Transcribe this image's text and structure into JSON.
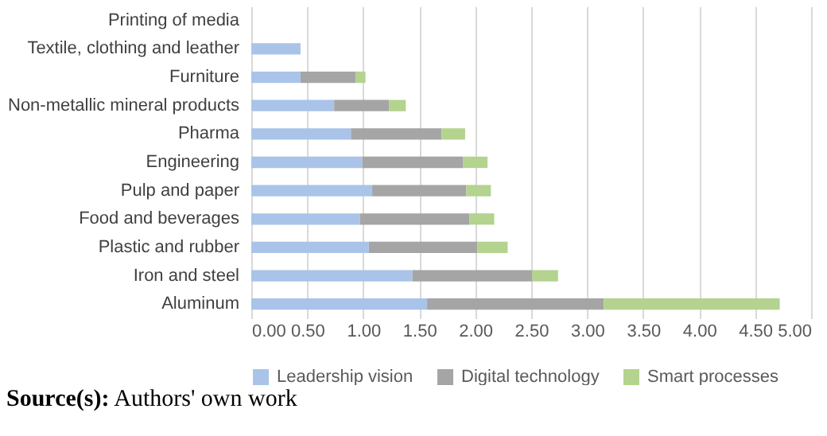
{
  "chart_data": {
    "type": "bar",
    "orientation": "horizontal",
    "stacked": true,
    "categories": [
      "Printing of media",
      "Textile, clothing and leather",
      "Furniture",
      "Non-metallic mineral products",
      "Pharma",
      "Engineering",
      "Pulp and paper",
      "Food and beverages",
      "Plastic and rubber",
      "Iron and steel",
      "Aluminum"
    ],
    "series": [
      {
        "name": "Leadership vision",
        "color": "#a9c4e8",
        "values": [
          null,
          0.44,
          0.44,
          0.74,
          0.89,
          0.99,
          1.08,
          0.97,
          1.05,
          1.44,
          1.57
        ]
      },
      {
        "name": "Digital technology",
        "color": "#a5a5a5",
        "values": [
          null,
          null,
          0.49,
          0.49,
          0.81,
          0.9,
          0.84,
          0.98,
          0.97,
          1.07,
          1.58
        ]
      },
      {
        "name": "Smart processes",
        "color": "#b3d38f",
        "values": [
          null,
          null,
          0.09,
          0.15,
          0.21,
          0.22,
          0.22,
          0.22,
          0.27,
          0.23,
          1.57
        ]
      }
    ],
    "xlim": [
      0,
      5
    ],
    "xticks": [
      {
        "value": 0,
        "label": "0.00"
      },
      {
        "value": 0.5,
        "label": "0.50"
      },
      {
        "value": 1,
        "label": "1.00"
      },
      {
        "value": 1.5,
        "label": "1.50"
      },
      {
        "value": 2,
        "label": "2.00"
      },
      {
        "value": 2.5,
        "label": "2.50"
      },
      {
        "value": 3,
        "label": "3.00"
      },
      {
        "value": 3.5,
        "label": "3.50"
      },
      {
        "value": 4,
        "label": "4.00"
      },
      {
        "value": 4.5,
        "label": "4.50"
      },
      {
        "value": 5,
        "label": "5.00"
      }
    ],
    "grid": "x",
    "legend": "bottom",
    "annotations": [
      "Source(s): Authors' own work"
    ]
  }
}
